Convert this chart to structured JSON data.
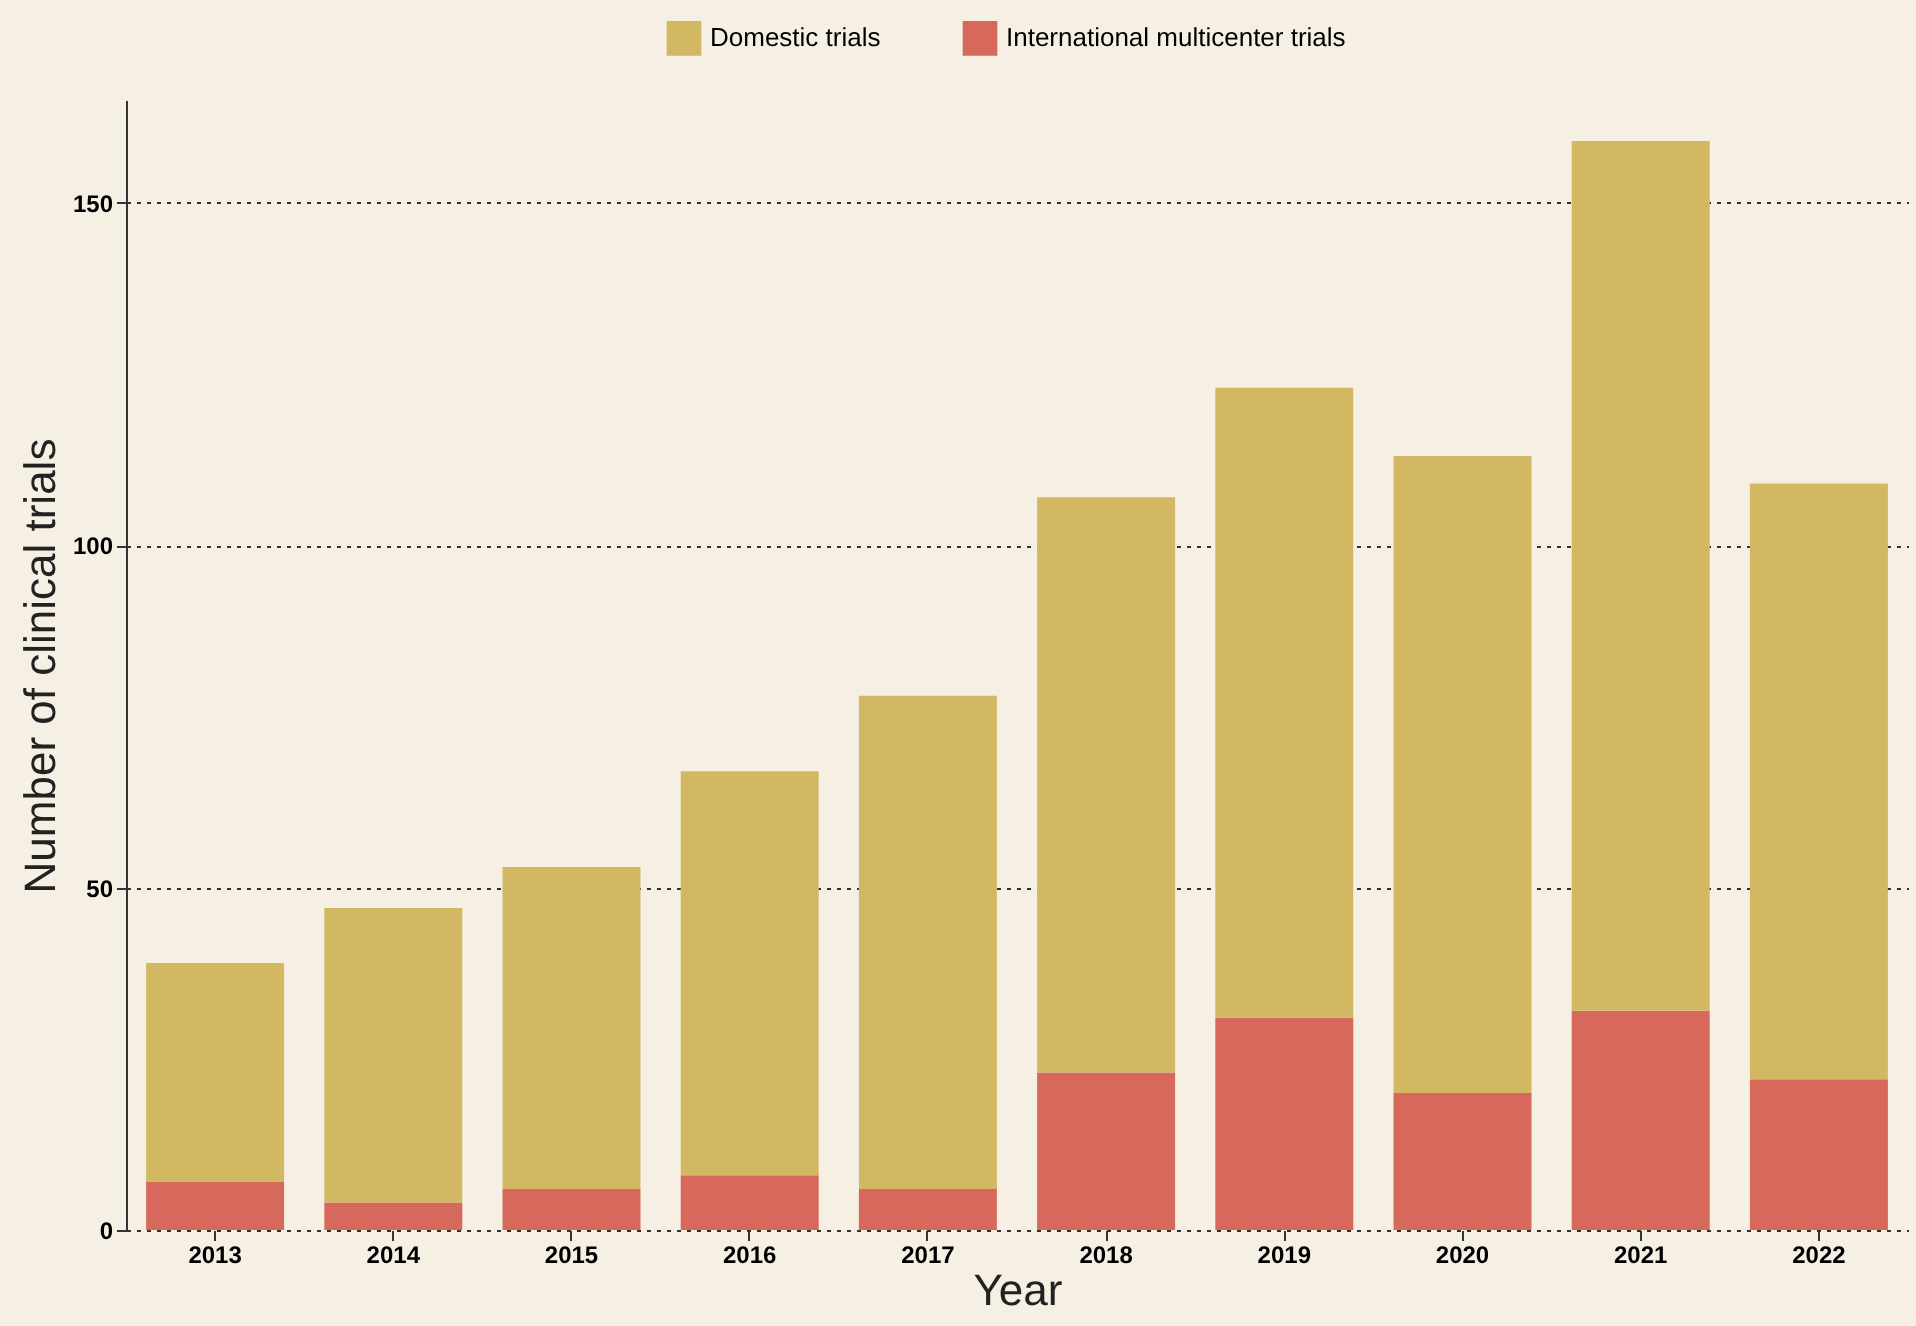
{
  "chart_data": {
    "type": "bar",
    "stacked": true,
    "xlabel": "Year",
    "ylabel": "Number of clinical trials",
    "categories": [
      "2013",
      "2014",
      "2015",
      "2016",
      "2017",
      "2018",
      "2019",
      "2020",
      "2021",
      "2022"
    ],
    "series": [
      {
        "name": "International multicenter trials",
        "color": "#d6695c",
        "values": [
          7,
          4,
          6,
          8,
          6,
          23,
          31,
          20,
          32,
          22
        ]
      },
      {
        "name": "Domestic trials",
        "color": "#d3b864",
        "values": [
          32,
          43,
          47,
          59,
          72,
          84,
          92,
          93,
          127,
          87
        ]
      }
    ],
    "ylim": [
      0,
      165
    ],
    "yticks": [
      0,
      50,
      100,
      150
    ],
    "grid": "y",
    "legend": "top"
  }
}
